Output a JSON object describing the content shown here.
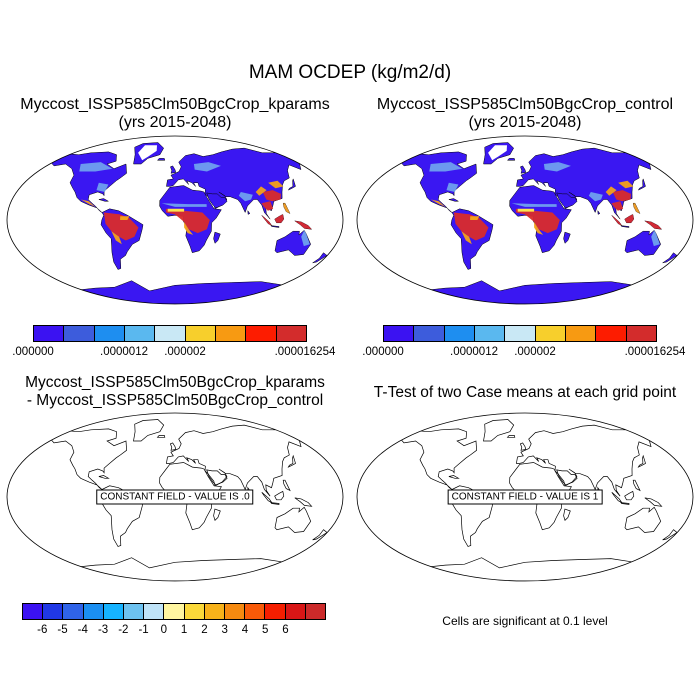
{
  "title": "MAM OCDEP (kg/m2/d)",
  "colors": {
    "ocean": "#ffffff",
    "low": "#3a17f2",
    "mid": "#6fa0ee",
    "high": "#d92b2b",
    "hot": "#ff1a00",
    "orange": "#f4a11a",
    "yellow": "#f9e64f",
    "ice": "#ffffff"
  },
  "panels": {
    "p1": {
      "title_line1": "Myccost_ISSP585Clm50BgcCrop_kparams",
      "title_line2": "(yrs 2015-2048)",
      "colorbar": {
        "colors": [
          "#3b12f2",
          "#3d5cdc",
          "#1e8ef0",
          "#5ab8ef",
          "#c9e8f5",
          "#f7cf2c",
          "#f79a12",
          "#fd1c00",
          "#d32c2c"
        ],
        "labels": [
          ".000000",
          ".0000012",
          ".000002",
          ".000016254"
        ]
      }
    },
    "p2": {
      "title_line1": "Myccost_ISSP585Clm50BgcCrop_control",
      "title_line2": "(yrs 2015-2048)",
      "colorbar": {
        "colors": [
          "#3b12f2",
          "#3d5cdc",
          "#1e8ef0",
          "#5ab8ef",
          "#c9e8f5",
          "#f7cf2c",
          "#f79a12",
          "#fd1c00",
          "#d32c2c"
        ],
        "labels": [
          ".000000",
          ".0000012",
          ".000002",
          ".000016254"
        ]
      }
    },
    "p3": {
      "title_line1": "Myccost_ISSP585Clm50BgcCrop_kparams",
      "title_line2": "- Myccost_ISSP585Clm50BgcCrop_control",
      "constant_label": "CONSTANT FIELD - VALUE IS .0",
      "colorbar": {
        "colors": [
          "#3b12f2",
          "#2038e6",
          "#2f63e8",
          "#1b8ff2",
          "#16b3ff",
          "#6dc2f0",
          "#bfe3f8",
          "#fff6a0",
          "#fbd93a",
          "#f7b21a",
          "#f68a10",
          "#f95a08",
          "#f51e00",
          "#d91616",
          "#cc2a2a"
        ],
        "labels": [
          "-6",
          "-5",
          "-4",
          "-3",
          "-2",
          "-1",
          "0",
          "1",
          "2",
          "3",
          "4",
          "5",
          "6"
        ]
      }
    },
    "p4": {
      "title_line1": "T-Test of two Case means at each grid point",
      "constant_label": "CONSTANT FIELD - VALUE IS 1",
      "note": "Cells are significant at 0.1 level"
    }
  }
}
